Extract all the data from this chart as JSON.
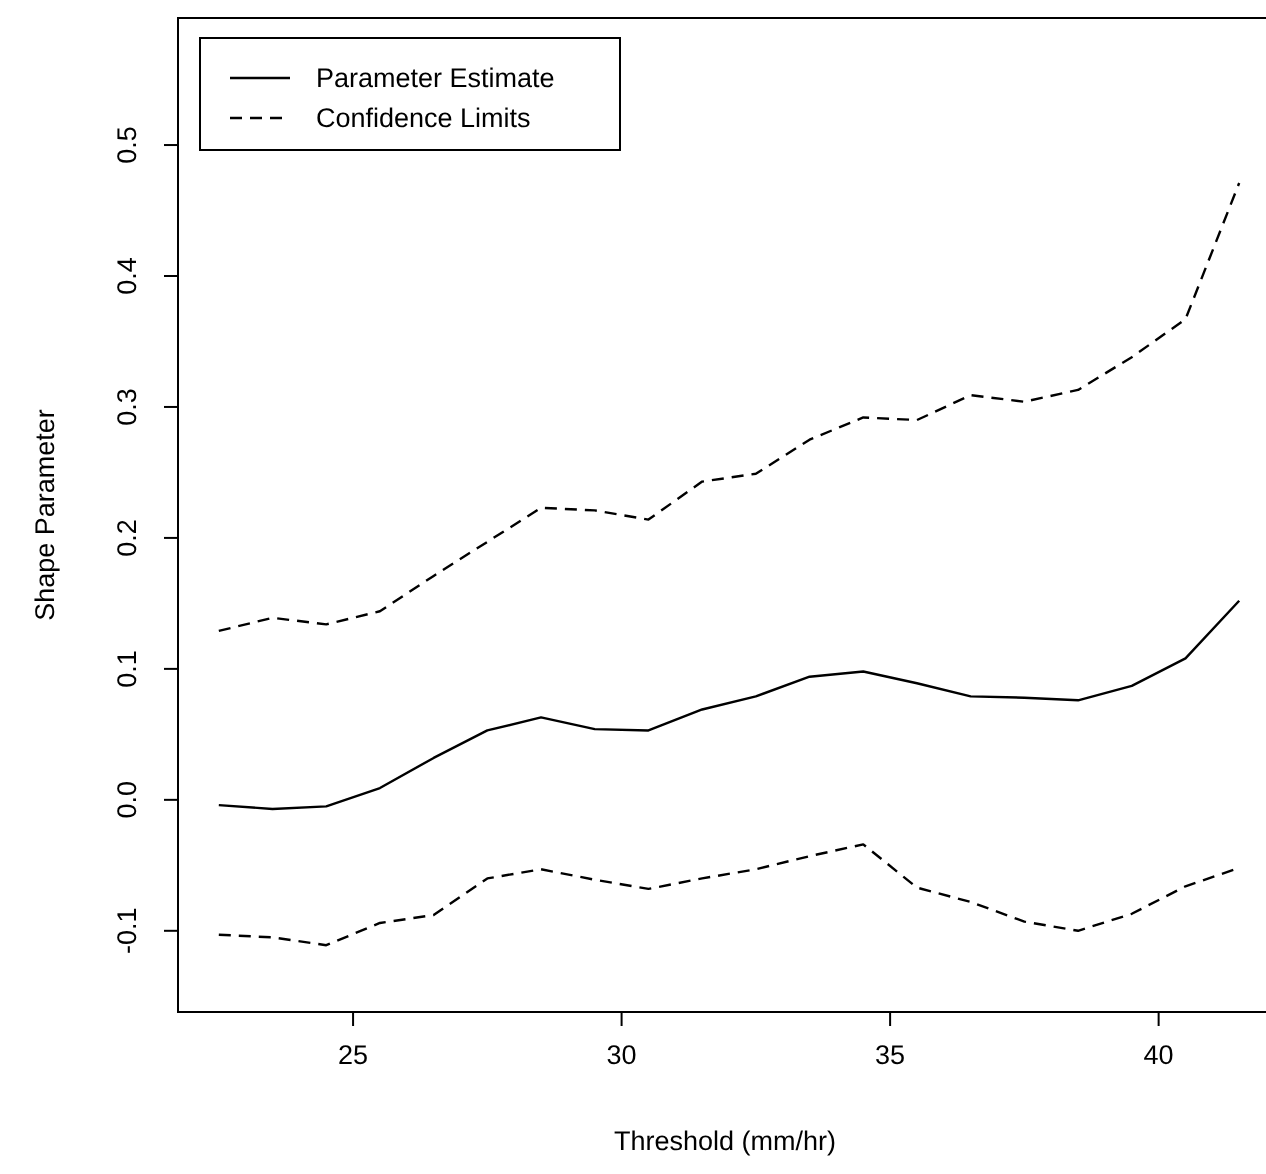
{
  "chart_data": {
    "type": "line",
    "xlabel": "Threshold (mm/hr)",
    "ylabel": "Shape Parameter",
    "x": [
      22.5,
      23.5,
      24.5,
      25.5,
      26.5,
      27.5,
      28.5,
      29.5,
      30.5,
      31.5,
      32.5,
      33.5,
      34.5,
      35.5,
      36.5,
      37.5,
      38.5,
      39.5,
      40.5,
      41.5
    ],
    "series": [
      {
        "name": "Parameter Estimate",
        "color": "#000000",
        "line_style": "solid",
        "values": [
          -0.004,
          -0.007,
          -0.005,
          0.009,
          0.032,
          0.053,
          0.063,
          0.054,
          0.053,
          0.069,
          0.079,
          0.094,
          0.098,
          0.089,
          0.079,
          0.078,
          0.076,
          0.087,
          0.108,
          0.152
        ]
      },
      {
        "name": "Confidence Limits",
        "color": "#000000",
        "line_style": "dashed",
        "values": [
          0.129,
          0.139,
          0.134,
          0.144,
          0.171,
          0.197,
          0.223,
          0.221,
          0.214,
          0.243,
          0.249,
          0.275,
          0.292,
          0.29,
          0.309,
          0.304,
          0.313,
          0.338,
          0.367,
          0.471
        ]
      },
      {
        "color": "#000000",
        "line_style": "dashed",
        "values": [
          -0.103,
          -0.105,
          -0.111,
          -0.094,
          -0.088,
          -0.06,
          -0.053,
          -0.061,
          -0.068,
          -0.06,
          -0.053,
          -0.043,
          -0.034,
          -0.067,
          -0.078,
          -0.093,
          -0.1,
          -0.087,
          -0.066,
          -0.052
        ]
      }
    ],
    "xlim": [
      21.74,
      42.26
    ],
    "xticks": [
      25,
      30,
      35,
      40
    ],
    "ylim": [
      -0.162,
      0.597
    ],
    "yticks": [
      {
        "value": -0.1,
        "label": "-0.1"
      },
      {
        "value": 0,
        "label": "0.0"
      },
      {
        "value": 0.1,
        "label": "0.1"
      },
      {
        "value": 0.2,
        "label": "0.2"
      },
      {
        "value": 0.3,
        "label": "0.3"
      },
      {
        "value": 0.4,
        "label": "0.4"
      },
      {
        "value": 0.5,
        "label": "0.5"
      }
    ],
    "legend": "top left",
    "marker": "none",
    "grid": false
  }
}
